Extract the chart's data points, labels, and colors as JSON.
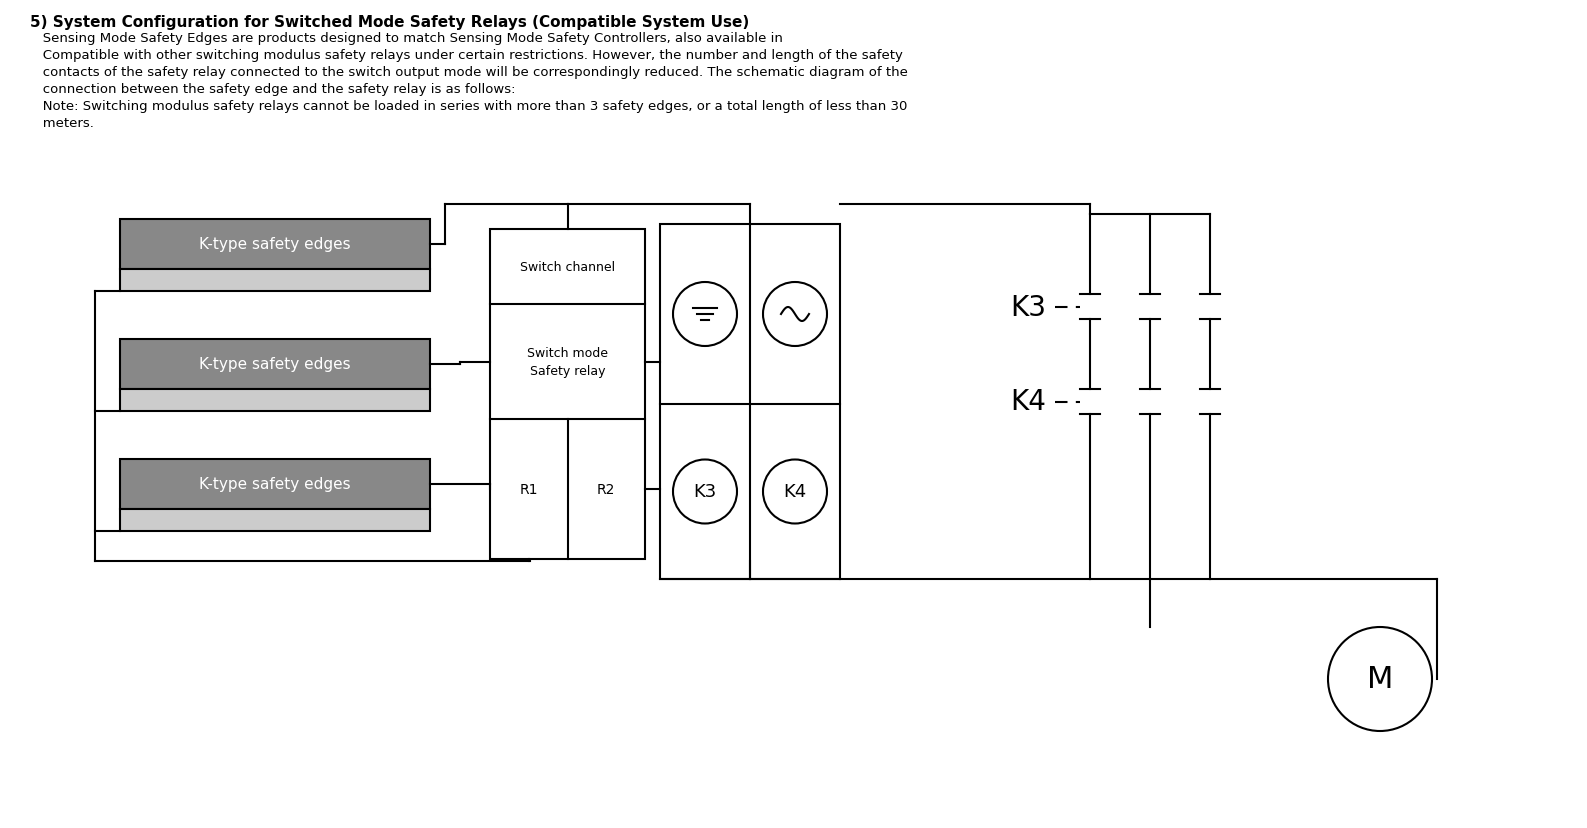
{
  "title_text": "5) System Configuration for Switched Mode Safety Relays (Compatible System Use)",
  "body_text": [
    "   Sensing Mode Safety Edges are products designed to match Sensing Mode Safety Controllers, also available in",
    "   Compatible with other switching modulus safety relays under certain restrictions. However, the number and length of the safety",
    "   contacts of the safety relay connected to the switch output mode will be correspondingly reduced. The schematic diagram of the",
    "   connection between the safety edge and the safety relay is as follows:",
    "   Note: Switching modulus safety relays cannot be loaded in series with more than 3 safety edges, or a total length of less than 30",
    "   meters."
  ],
  "background_color": "#ffffff",
  "text_color": "#000000",
  "dark_gray": "#888888",
  "light_gray": "#cccccc",
  "k_type_label": "K-type safety edges",
  "switch_channel": "Switch channel",
  "switch_mode": "Switch mode",
  "safety_relay": "Safety relay",
  "r1_label": "R1",
  "r2_label": "R2",
  "k3_label": "K3",
  "k4_label": "K4",
  "m_label": "M"
}
